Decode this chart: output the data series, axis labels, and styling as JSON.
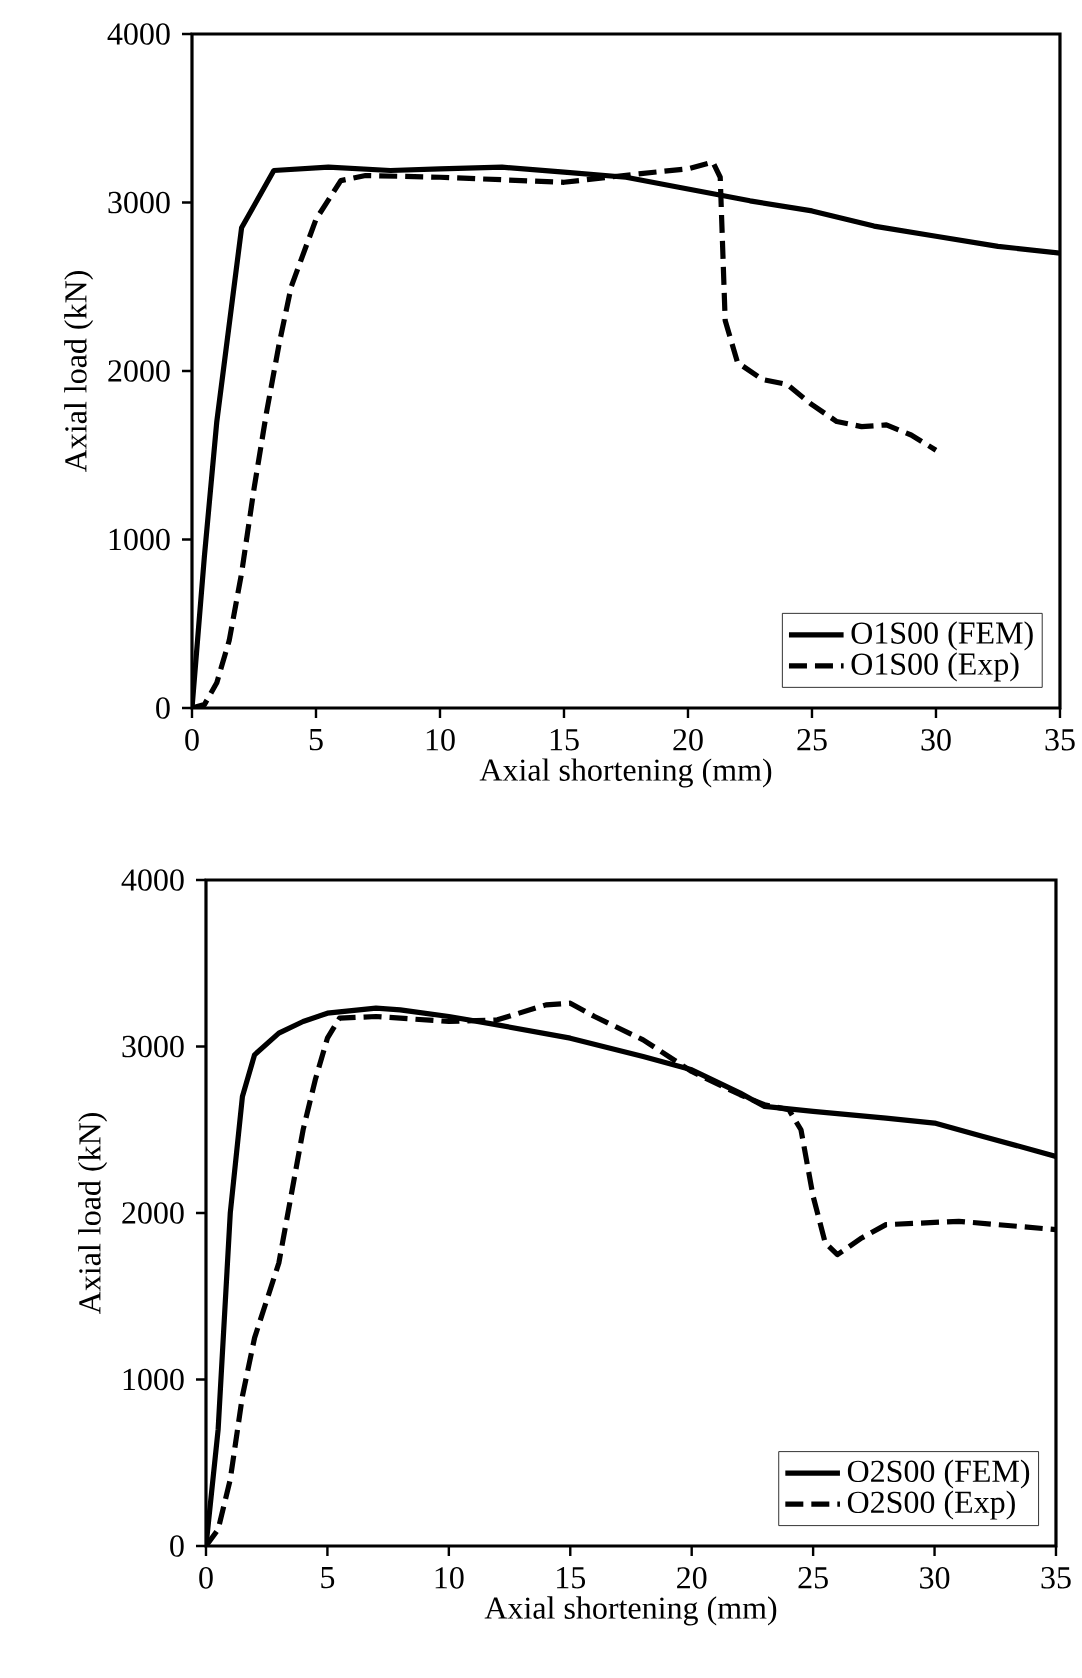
{
  "chart_data": [
    {
      "type": "line",
      "xlabel": "Axial shortening (mm)",
      "ylabel": "Axial load (kN)",
      "xlim": [
        0,
        35
      ],
      "ylim": [
        0,
        4000
      ],
      "xticks": [
        0,
        5,
        10,
        15,
        20,
        25,
        30,
        35
      ],
      "yticks": [
        0,
        1000,
        2000,
        3000,
        4000
      ],
      "grid": false,
      "legend": "bottom right",
      "marker": "none",
      "series": [
        {
          "name": "O1S00 (FEM)",
          "color": "#000000",
          "line_style": "solid",
          "x": [
            0,
            0.5,
            1,
            2,
            3.3,
            5.5,
            8,
            10,
            12.5,
            15,
            17.5,
            20,
            22.5,
            25,
            27.5,
            30,
            32.5,
            35
          ],
          "values": [
            0,
            900,
            1700,
            2850,
            3190,
            3210,
            3190,
            3200,
            3210,
            3180,
            3150,
            3080,
            3010,
            2950,
            2860,
            2800,
            2740,
            2700
          ]
        },
        {
          "name": "O1S00 (Exp)",
          "color": "#000000",
          "line_style": "dashed",
          "x": [
            0,
            0.5,
            1,
            1.5,
            2,
            2.5,
            3,
            3.5,
            4,
            5,
            6,
            7,
            10,
            15,
            18,
            20,
            21,
            21.3,
            21.5,
            22,
            23,
            24,
            25,
            26,
            27,
            28,
            29,
            30
          ],
          "values": [
            0,
            20,
            150,
            400,
            800,
            1300,
            1750,
            2150,
            2500,
            2900,
            3130,
            3160,
            3150,
            3120,
            3170,
            3200,
            3240,
            3150,
            2300,
            2050,
            1950,
            1920,
            1800,
            1700,
            1670,
            1680,
            1620,
            1530
          ]
        }
      ]
    },
    {
      "type": "line",
      "xlabel": "Axial shortening (mm)",
      "ylabel": "Axial load (kN)",
      "xlim": [
        0,
        35
      ],
      "ylim": [
        0,
        4000
      ],
      "xticks": [
        0,
        5,
        10,
        15,
        20,
        25,
        30,
        35
      ],
      "yticks": [
        0,
        1000,
        2000,
        3000,
        4000
      ],
      "grid": false,
      "legend": "bottom right",
      "marker": "none",
      "series": [
        {
          "name": "O2S00 (FEM)",
          "color": "#000000",
          "line_style": "solid",
          "x": [
            0,
            0.5,
            1,
            1.5,
            2,
            3,
            4,
            5,
            7,
            8,
            10,
            12,
            15,
            18,
            20,
            22,
            23,
            25,
            28,
            30,
            32,
            35
          ],
          "values": [
            0,
            700,
            2000,
            2700,
            2950,
            3080,
            3150,
            3200,
            3230,
            3220,
            3180,
            3130,
            3050,
            2940,
            2860,
            2720,
            2640,
            2610,
            2570,
            2540,
            2460,
            2340
          ]
        },
        {
          "name": "O2S00 (Exp)",
          "color": "#000000",
          "line_style": "dashed",
          "x": [
            0,
            0.5,
            1,
            1.5,
            2,
            3,
            4,
            4.5,
            5,
            5.5,
            7,
            10,
            12,
            14,
            15,
            16,
            18,
            20,
            22,
            23,
            24,
            24.5,
            25,
            25.5,
            26,
            27,
            28,
            31,
            35
          ],
          "values": [
            0,
            100,
            400,
            900,
            1250,
            1700,
            2500,
            2800,
            3050,
            3170,
            3180,
            3150,
            3160,
            3250,
            3260,
            3180,
            3040,
            2850,
            2710,
            2650,
            2620,
            2500,
            2100,
            1820,
            1750,
            1850,
            1930,
            1950,
            1900
          ]
        }
      ]
    }
  ]
}
